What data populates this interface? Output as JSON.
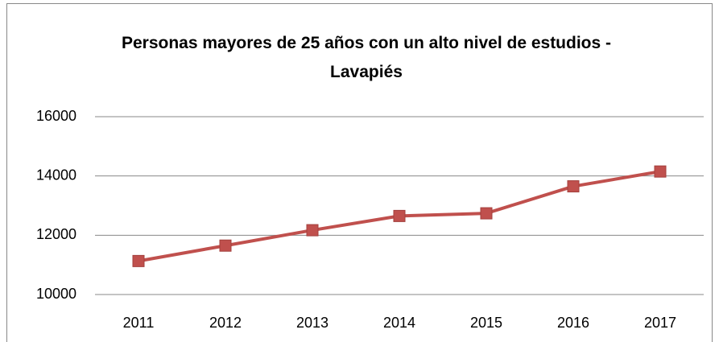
{
  "chart_data": {
    "type": "line",
    "title": "Personas mayores de 25 años con un alto nivel de estudios - Lavapiés",
    "categories": [
      "2011",
      "2012",
      "2013",
      "2014",
      "2015",
      "2016",
      "2017"
    ],
    "series": [
      {
        "name": "Lavapiés",
        "color": "#c0504d",
        "values": [
          11130,
          11650,
          12170,
          12650,
          12740,
          13650,
          14150
        ]
      }
    ],
    "ylim": [
      10000,
      16000
    ],
    "yticks": [
      10000,
      12000,
      14000,
      16000
    ],
    "grid": true,
    "legend": false
  }
}
